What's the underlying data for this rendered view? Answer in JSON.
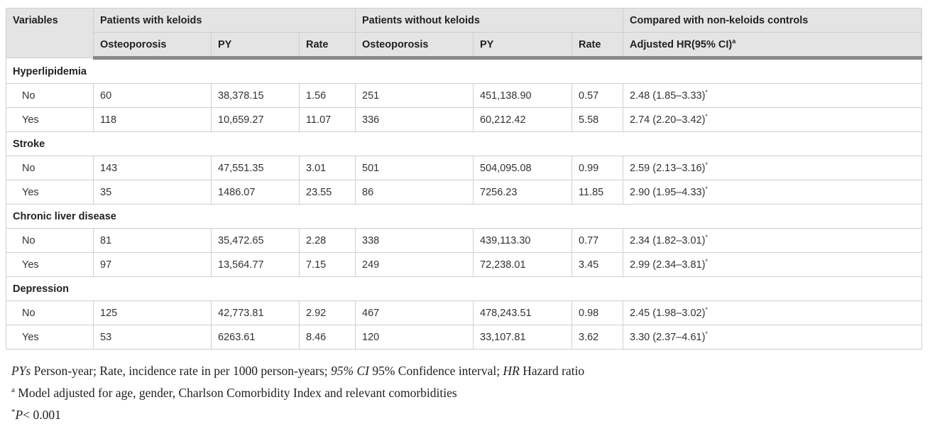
{
  "header": {
    "variables": "Variables",
    "group_keloids": "Patients with keloids",
    "group_no_keloids": "Patients without keloids",
    "group_compared": "Compared with non-keloids controls",
    "col_osteoporosis": "Osteoporosis",
    "col_py": "PY",
    "col_rate": "Rate",
    "col_hr": "Adjusted HR(95% CI)",
    "col_hr_sup": "a"
  },
  "sections": [
    {
      "title": "Hyperlipidemia",
      "rows": [
        {
          "label": "No",
          "k_ost": "60",
          "k_py": "38,378.15",
          "k_rate": "1.56",
          "n_ost": "251",
          "n_py": "451,138.90",
          "n_rate": "0.57",
          "hr": "2.48 (1.85–3.33)",
          "sup": "*"
        },
        {
          "label": "Yes",
          "k_ost": "118",
          "k_py": "10,659.27",
          "k_rate": "11.07",
          "n_ost": "336",
          "n_py": "60,212.42",
          "n_rate": "5.58",
          "hr": "2.74 (2.20–3.42)",
          "sup": "*"
        }
      ]
    },
    {
      "title": "Stroke",
      "rows": [
        {
          "label": "No",
          "k_ost": "143",
          "k_py": "47,551.35",
          "k_rate": "3.01",
          "n_ost": "501",
          "n_py": "504,095.08",
          "n_rate": "0.99",
          "hr": "2.59 (2.13–3.16)",
          "sup": "*"
        },
        {
          "label": "Yes",
          "k_ost": "35",
          "k_py": "1486.07",
          "k_rate": "23.55",
          "n_ost": "86",
          "n_py": "7256.23",
          "n_rate": "11.85",
          "hr": "2.90 (1.95–4.33)",
          "sup": "*"
        }
      ]
    },
    {
      "title": "Chronic liver disease",
      "rows": [
        {
          "label": "No",
          "k_ost": "81",
          "k_py": "35,472.65",
          "k_rate": "2.28",
          "n_ost": "338",
          "n_py": "439,113.30",
          "n_rate": "0.77",
          "hr": "2.34 (1.82–3.01)",
          "sup": "*"
        },
        {
          "label": "Yes",
          "k_ost": "97",
          "k_py": "13,564.77",
          "k_rate": "7.15",
          "n_ost": "249",
          "n_py": "72,238.01",
          "n_rate": "3.45",
          "hr": "2.99 (2.34–3.81)",
          "sup": "*"
        }
      ]
    },
    {
      "title": "Depression",
      "rows": [
        {
          "label": "No",
          "k_ost": "125",
          "k_py": "42,773.81",
          "k_rate": "2.92",
          "n_ost": "467",
          "n_py": "478,243.51",
          "n_rate": "0.98",
          "hr": "2.45 (1.98–3.02)",
          "sup": "*"
        },
        {
          "label": "Yes",
          "k_ost": "53",
          "k_py": "6263.61",
          "k_rate": "8.46",
          "n_ost": "120",
          "n_py": "33,107.81",
          "n_rate": "3.62",
          "hr": "3.30 (2.37–4.61)",
          "sup": "*"
        }
      ]
    }
  ],
  "footnotes": {
    "line1": [
      {
        "text": "PYs",
        "italic": true
      },
      {
        "text": " Person-year; Rate, incidence rate in per 1000 person-years; ",
        "italic": false
      },
      {
        "text": "95% CI",
        "italic": true
      },
      {
        "text": " 95% Confidence interval; ",
        "italic": false
      },
      {
        "text": "HR",
        "italic": true
      },
      {
        "text": " Hazard ratio",
        "italic": false
      }
    ],
    "line2_sup": "a",
    "line2_text": " Model adjusted for age, gender, Charlson Comorbidity Index and relevant comorbidities",
    "line3_sup": "*",
    "line3_italic": "P",
    "line3_text": "< 0.001"
  }
}
